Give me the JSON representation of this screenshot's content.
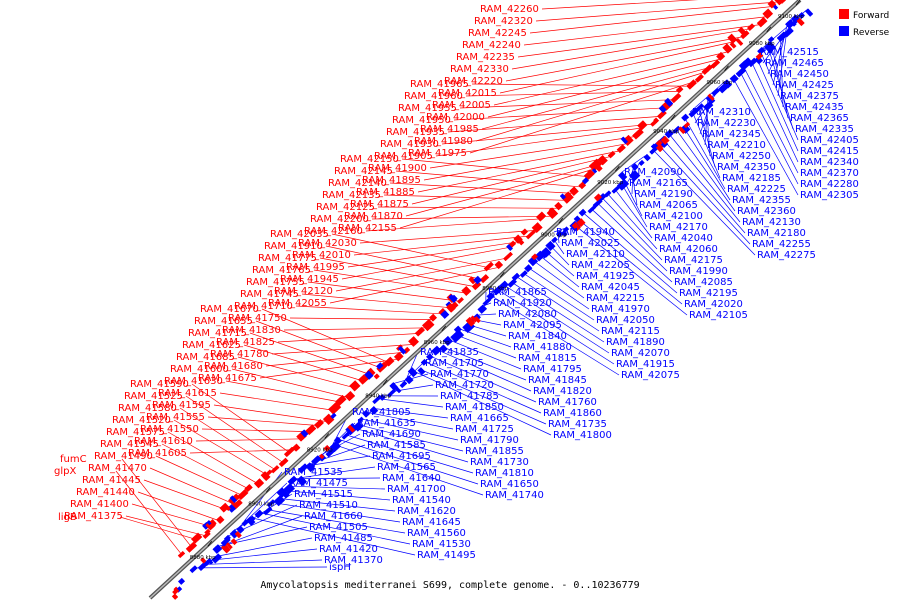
{
  "caption": "Amycolatopsis mediterranei S699, complete genome. - 0..10236779",
  "legend": [
    {
      "label": "Forward",
      "color": "#ff0000"
    },
    {
      "label": "Reverse",
      "color": "#0000ff"
    }
  ],
  "colors": {
    "forward": "#ff0000",
    "reverse": "#0000ff",
    "axis": "#808080"
  },
  "ticks": [
    {
      "label": "8880 kbp",
      "t": 0.095
    },
    {
      "label": "8900 kbp",
      "t": 0.185
    },
    {
      "label": "8920 kbp",
      "t": 0.275
    },
    {
      "label": "8940 kbp",
      "t": 0.365
    },
    {
      "label": "8960 kbp",
      "t": 0.455
    },
    {
      "label": "8980 kbp",
      "t": 0.545
    },
    {
      "label": "9000 kbp",
      "t": 0.635
    },
    {
      "label": "9020 kbp",
      "t": 0.722
    },
    {
      "label": "9040 kbp",
      "t": 0.808
    },
    {
      "label": "9060 kbp",
      "t": 0.89
    },
    {
      "label": "9080 kbp",
      "t": 0.955
    },
    {
      "label": "9100 kbp",
      "t": 1.0
    }
  ],
  "forward_labels": [
    "RAM_42260",
    "RAM_42320",
    "RAM_42245",
    "RAM_42240",
    "RAM_42235",
    "RAM_42330",
    "RAM_42220",
    "RAM_42015",
    "RAM_42005",
    "RAM_42000",
    "RAM_41985",
    "RAM_41980",
    "RAM_41975",
    "RAM_41965",
    "RAM_41960",
    "RAM_41955",
    "RAM_41950",
    "RAM_41935",
    "RAM_41930",
    "RAM_41905",
    "RAM_41900",
    "RAM_41895",
    "RAM_41885",
    "RAM_41875",
    "RAM_41870",
    "RAM_42155",
    "RAM_42150",
    "RAM_42145",
    "RAM_42140",
    "RAM_42135",
    "RAM_42125",
    "RAM_42200",
    "RAM_42160",
    "RAM_42030",
    "RAM_42010",
    "RAM_41995",
    "RAM_41945",
    "RAM_42120",
    "RAM_42055",
    "RAM_42035",
    "RAM_41910",
    "RAM_41775",
    "RAM_41765",
    "RAM_41755",
    "RAM_41745",
    "RAM_41710",
    "RAM_41750",
    "RAM_41830",
    "RAM_41825",
    "RAM_41780",
    "RAM_41680",
    "RAM_41675",
    "RAM_41670",
    "RAM_41655",
    "RAM_41715",
    "RAM_41625",
    "RAM_41685",
    "RAM_41600",
    "RAM_41630",
    "RAM_41615",
    "RAM_41595",
    "RAM_41555",
    "RAM_41550",
    "RAM_41610",
    "RAM_41605",
    "RAM_41590",
    "RAM_41525",
    "RAM_41580",
    "RAM_41520",
    "RAM_41575",
    "RAM_41545",
    "RAM_41490",
    "RAM_41470",
    "RAM_41445",
    "RAM_41440",
    "RAM_41400",
    "RAM_41375",
    "ligB",
    "fumC",
    "glpX"
  ],
  "reverse_labels": [
    "RAM_42515",
    "RAM_42465",
    "RAM_42450",
    "RAM_42425",
    "RAM_42375",
    "RAM_42435",
    "RAM_42365",
    "RAM_42335",
    "RAM_42405",
    "RAM_42415",
    "RAM_42340",
    "RAM_42370",
    "RAM_42280",
    "RAM_42305",
    "RAM_42310",
    "RAM_42230",
    "RAM_42345",
    "RAM_42210",
    "RAM_42250",
    "RAM_42350",
    "RAM_42185",
    "RAM_42225",
    "RAM_42355",
    "RAM_42360",
    "RAM_42130",
    "RAM_42180",
    "RAM_42255",
    "RAM_42275",
    "RAM_42090",
    "RAM_42165",
    "RAM_42190",
    "RAM_42065",
    "RAM_42100",
    "RAM_42170",
    "RAM_42040",
    "RAM_42060",
    "RAM_42175",
    "RAM_41990",
    "RAM_42085",
    "RAM_42195",
    "RAM_42020",
    "RAM_42105",
    "RAM_41940",
    "RAM_42025",
    "RAM_42110",
    "RAM_42205",
    "RAM_41925",
    "RAM_42045",
    "RAM_42215",
    "RAM_41970",
    "RAM_42050",
    "RAM_42115",
    "RAM_41890",
    "RAM_42070",
    "RAM_41915",
    "RAM_42075",
    "RAM_41865",
    "RAM_41920",
    "RAM_42080",
    "RAM_42095",
    "RAM_41840",
    "RAM_41880",
    "RAM_41815",
    "RAM_41795",
    "RAM_41845",
    "RAM_41820",
    "RAM_41760",
    "RAM_41860",
    "RAM_41735",
    "RAM_41800",
    "RAM_41835",
    "RAM_41705",
    "RAM_41770",
    "RAM_41720",
    "RAM_41785",
    "RAM_41850",
    "RAM_41665",
    "RAM_41725",
    "RAM_41790",
    "RAM_41855",
    "RAM_41730",
    "RAM_41810",
    "RAM_41650",
    "RAM_41740",
    "RAM_41805",
    "RAM_41635",
    "RAM_41690",
    "RAM_41585",
    "RAM_41695",
    "RAM_41565",
    "RAM_41640",
    "RAM_41700",
    "RAM_41540",
    "RAM_41620",
    "RAM_41645",
    "RAM_41560",
    "RAM_41530",
    "RAM_41495",
    "RAM_41535",
    "RAM_41475",
    "RAM_41515",
    "RAM_41510",
    "RAM_41660",
    "RAM_41505",
    "RAM_41485",
    "RAM_41420",
    "RAM_41370",
    "ispH"
  ]
}
